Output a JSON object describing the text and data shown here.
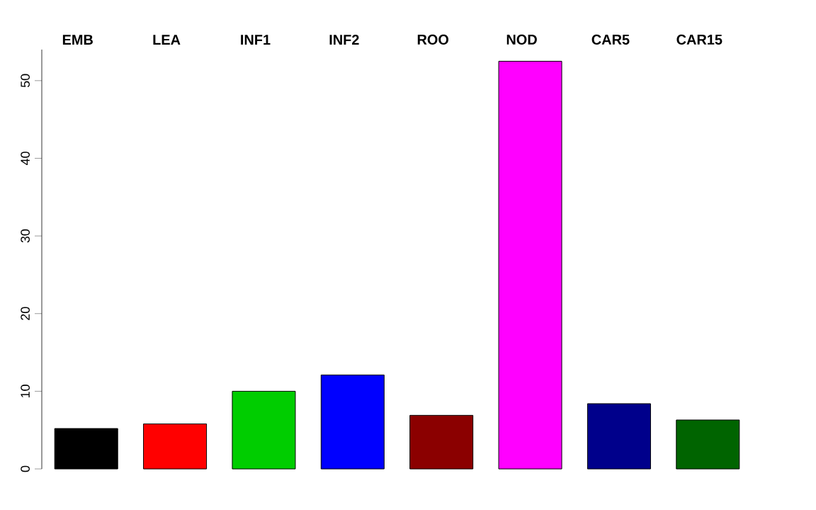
{
  "chart_data": {
    "type": "bar",
    "categories": [
      "EMB",
      "LEA",
      "INF1",
      "INF2",
      "ROO",
      "NOD",
      "CAR5",
      "CAR15"
    ],
    "values": [
      5.2,
      5.8,
      10,
      12.1,
      6.9,
      52.5,
      8.4,
      6.3
    ],
    "colors": [
      "#000000",
      "#ff0000",
      "#00cd00",
      "#0000ff",
      "#8b0000",
      "#ff00ff",
      "#00008b",
      "#006400"
    ],
    "ylim": [
      0,
      54
    ],
    "yticks": [
      0,
      10,
      20,
      30,
      40,
      50
    ]
  }
}
